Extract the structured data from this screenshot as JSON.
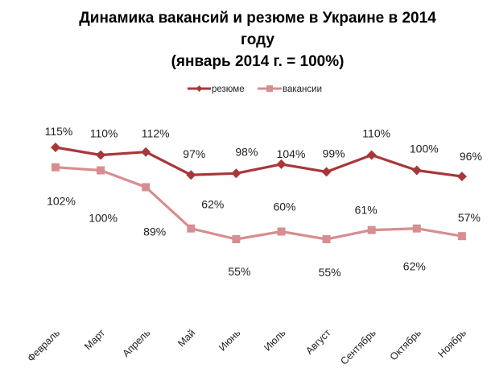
{
  "chart_data": {
    "type": "line",
    "title": [
      "Динамика вакансий и резюме в Украине в 2014",
      "году",
      "(январь 2014 г. = 100%)"
    ],
    "xlabel": "",
    "ylabel": "",
    "categories": [
      "Февраль",
      "Март",
      "Апрель",
      "Май",
      "Июнь",
      "Июль",
      "Август",
      "Сентябрь",
      "Октябрь",
      "Ноябрь"
    ],
    "series": [
      {
        "name": "резюме",
        "color": "#A8373A",
        "marker": "diamond",
        "values": [
          115,
          110,
          112,
          97,
          98,
          104,
          99,
          110,
          100,
          96
        ],
        "labels": [
          "115%",
          "110%",
          "112%",
          "97%",
          "98%",
          "104%",
          "99%",
          "110%",
          "100%",
          "96%"
        ]
      },
      {
        "name": "вакансии",
        "color": "#D68E90",
        "marker": "square",
        "values": [
          102,
          100,
          89,
          62,
          55,
          60,
          55,
          61,
          62,
          57
        ],
        "labels": [
          "102%",
          "100%",
          "89%",
          "62%",
          "55%",
          "60%",
          "55%",
          "61%",
          "62%",
          "57%"
        ]
      }
    ],
    "ylim": [
      40,
      130
    ],
    "grid": false,
    "legend_position": "top-center",
    "unit": "%"
  }
}
